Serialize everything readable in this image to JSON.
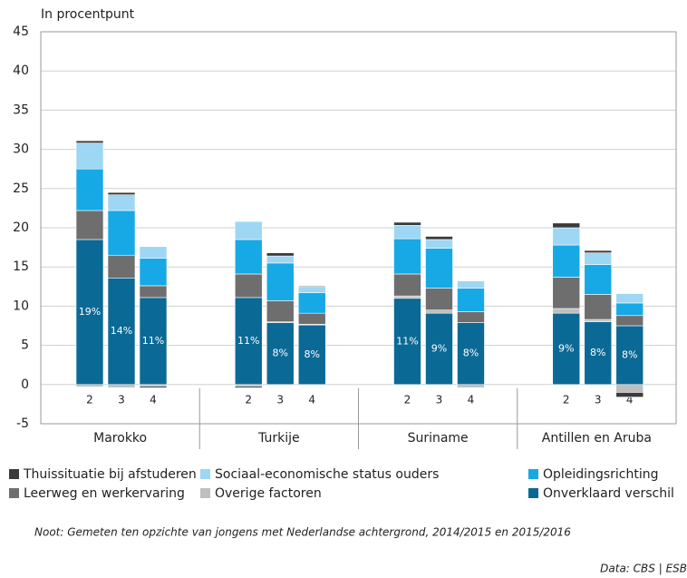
{
  "chart_data": {
    "type": "stacked_bar",
    "y_axis_label": "In procentpunt",
    "groups": [
      "Marokko",
      "Turkije",
      "Suriname",
      "Antillen en Aruba"
    ],
    "categories": [
      "2",
      "3",
      "4",
      "2",
      "3",
      "4",
      "2",
      "3",
      "4",
      "2",
      "3",
      "4"
    ],
    "series": [
      {
        "name": "Onverklaard verschil",
        "color": "#0b6995",
        "values": [
          18.5,
          13.6,
          11.1,
          11.1,
          7.9,
          7.6,
          11.0,
          9.1,
          7.9,
          9.1,
          8.0,
          7.5
        ]
      },
      {
        "name": "Overige factoren",
        "color": "#bfbfbf",
        "values": [
          -0.3,
          -0.4,
          -0.2,
          -0.2,
          0.1,
          0.1,
          0.3,
          0.4,
          -0.4,
          0.6,
          0.3,
          -1.0
        ]
      },
      {
        "name": "Leerweg en werkervaring",
        "color": "#6e6e6e",
        "values": [
          3.7,
          2.9,
          1.5,
          3.0,
          2.7,
          1.4,
          2.8,
          2.8,
          1.4,
          4.0,
          3.2,
          1.3
        ]
      },
      {
        "name": "Opleidingsrichting",
        "color": "#17a9e5",
        "values": [
          5.3,
          5.7,
          3.5,
          4.4,
          4.8,
          2.6,
          4.5,
          5.1,
          3.0,
          4.1,
          3.8,
          1.6
        ]
      },
      {
        "name": "Sociaal-economische status ouders",
        "color": "#9dd7f3",
        "values": [
          3.3,
          2.0,
          1.5,
          2.3,
          0.9,
          0.8,
          1.7,
          1.1,
          0.8,
          2.2,
          1.5,
          1.2
        ]
      },
      {
        "name": "Thuissituatie bij afstuderen",
        "color": "#3a3a3a",
        "values": [
          0.3,
          0.3,
          -0.2,
          -0.2,
          0.4,
          0.1,
          0.4,
          0.4,
          0.1,
          0.6,
          0.3,
          -0.6
        ]
      }
    ],
    "percent_labels": [
      "19%",
      "14%",
      "11%",
      "11%",
      "8%",
      "8%",
      "11%",
      "9%",
      "8%",
      "9%",
      "8%",
      "8%"
    ],
    "ylim": [
      -5,
      45
    ],
    "yticks": [
      -5,
      0,
      5,
      10,
      15,
      20,
      25,
      30,
      35,
      40,
      45
    ],
    "grid": true,
    "note": "Noot: Gemeten ten opzichte van jongens met Nederlandse achtergrond, 2014/2015 en 2015/2016",
    "source": "Data: CBS | ESB"
  }
}
